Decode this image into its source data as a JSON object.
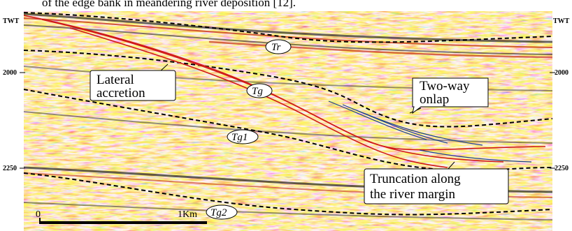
{
  "caption": "of the edge bank in meandering river deposition [12].",
  "axis_labels": {
    "twt_left": "TWT",
    "twt_right": "TWT",
    "tick_2000_left": "2000",
    "tick_2000_right": "2000",
    "tick_2250_left": "2250",
    "tick_2250_right": "2250"
  },
  "horizons": {
    "tr": "Tr",
    "tg": "Tg",
    "tg1": "Tg1",
    "tg2": "Tg2"
  },
  "annotations": {
    "lateral_accretion": [
      "Lateral",
      "accretion"
    ],
    "two_way_onlap": [
      "Two-way",
      "onlap"
    ],
    "truncation": [
      "Truncation    along",
      "the river margin"
    ]
  },
  "scale_bar": {
    "start": "0",
    "end": "1Km"
  },
  "colors": {
    "amplitude_positive": "#f6c33a",
    "amplitude_strong": "#c8321c",
    "amplitude_negative": "#5a5a5a",
    "fault_line": "#d01818",
    "onlap_line": "#1c3f8c"
  }
}
